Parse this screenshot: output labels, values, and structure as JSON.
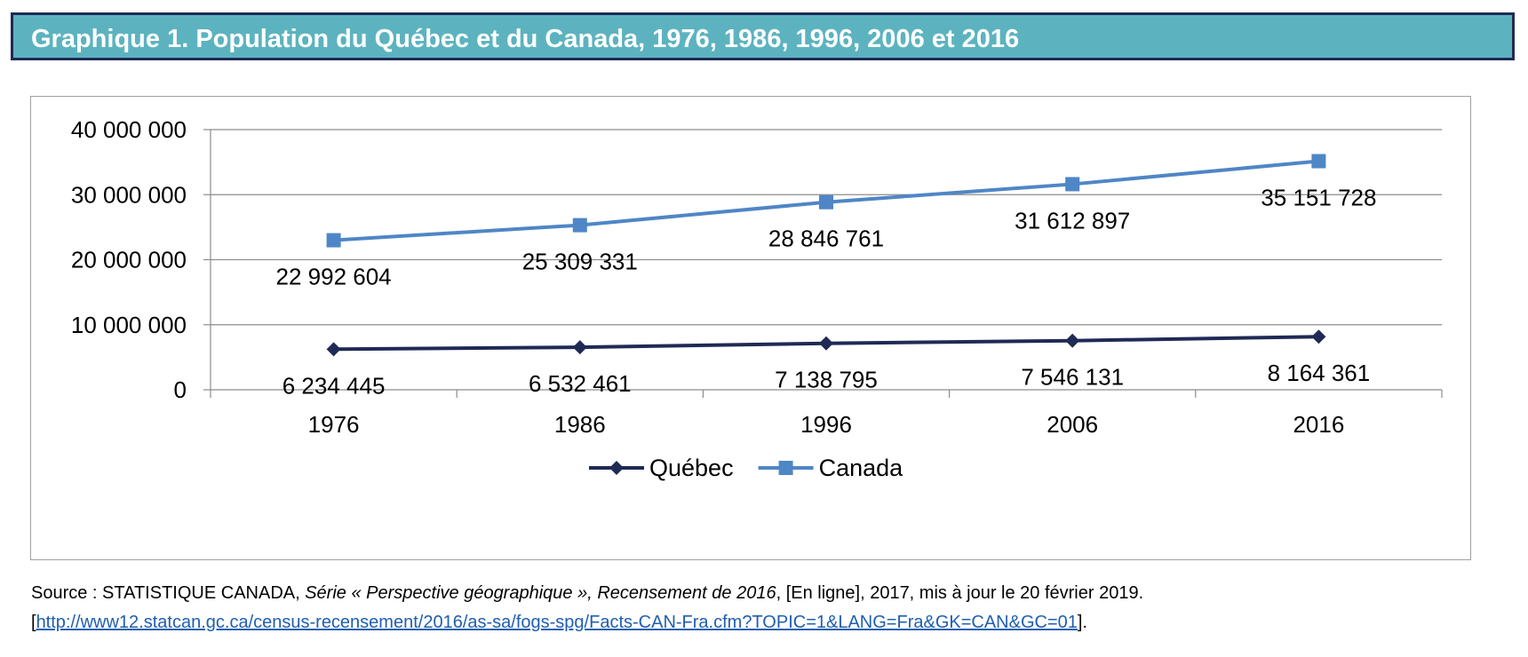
{
  "header": {
    "title": "Graphique 1. Population du Québec et du Canada, 1976, 1986, 1996, 2006 et 2016"
  },
  "colors": {
    "title_bg": "#5cb3bf",
    "title_border": "#1f2a55",
    "quebec": "#1f2a55",
    "canada": "#4f86c6"
  },
  "chart_data": {
    "type": "line",
    "categories": [
      "1976",
      "1986",
      "1996",
      "2006",
      "2016"
    ],
    "series": [
      {
        "name": "Québec",
        "values": [
          6234445,
          6532461,
          7138795,
          7546131,
          8164361
        ],
        "labels": [
          "6 234 445",
          "6 532 461",
          "7 138 795",
          "7 546 131",
          "8 164 361"
        ],
        "marker": "diamond",
        "color": "#1f2a55"
      },
      {
        "name": "Canada",
        "values": [
          22992604,
          25309331,
          28846761,
          31612897,
          35151728
        ],
        "labels": [
          "22 992 604",
          "25 309 331",
          "28 846 761",
          "31 612 897",
          "35 151 728"
        ],
        "marker": "square",
        "color": "#4f86c6"
      }
    ],
    "yticks": [
      0,
      10000000,
      20000000,
      30000000,
      40000000
    ],
    "ytick_labels": [
      "0",
      "10 000 000",
      "20 000 000",
      "30 000 000",
      "40 000 000"
    ],
    "ylim": [
      0,
      40000000
    ],
    "grid": true,
    "legend": "bottom"
  },
  "source": {
    "prefix": "Source : STATISTIQUE CANADA, ",
    "publication": "Série « Perspective géographique », Recensement de 2016",
    "suffix": ", [En ligne], 2017, mis à jour le 20 février 2019.",
    "bracket_open": "[",
    "url": "http://www12.statcan.gc.ca/census-recensement/2016/as-sa/fogs-spg/Facts-CAN-Fra.cfm?TOPIC=1&LANG=Fra&GK=CAN&GC=01",
    "bracket_close": "]."
  }
}
